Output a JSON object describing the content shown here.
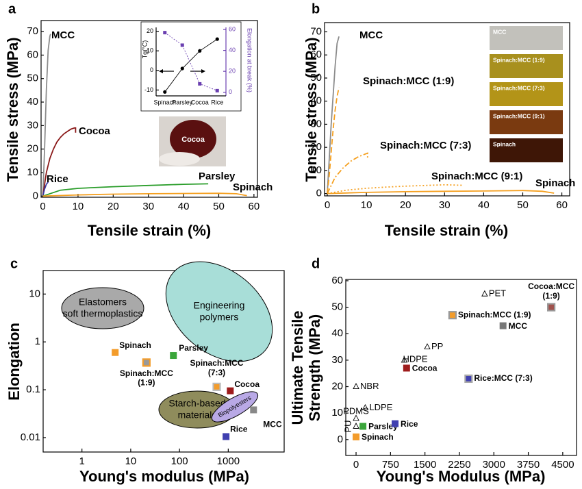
{
  "chart_data": [
    {
      "panel": "a",
      "type": "line",
      "xlabel": "Tensile strain (%)",
      "ylabel": "Tensile stress (MPa)",
      "xlim": [
        -0.5,
        61
      ],
      "ylim": [
        -0.5,
        74.7
      ],
      "xticks": [
        0,
        10,
        20,
        30,
        40,
        50,
        60
      ],
      "yticks": [
        0,
        10,
        20,
        30,
        40,
        50,
        60,
        70
      ],
      "photo_label": "Cocoa",
      "series": [
        {
          "name": "MCC",
          "color": "#8c8c8c",
          "x": [
            0,
            0.5,
            1,
            1.5,
            2,
            2.2
          ],
          "values": [
            0,
            20,
            45,
            62,
            68,
            69
          ]
        },
        {
          "name": "Cocoa",
          "color": "#8b1a1a",
          "x": [
            0,
            1,
            2,
            3,
            4,
            5,
            6,
            7,
            8,
            9,
            9.3,
            9.3
          ],
          "values": [
            0,
            10,
            16,
            20,
            23,
            25,
            26.5,
            27.5,
            28.5,
            29,
            29,
            27
          ]
        },
        {
          "name": "Rice",
          "color": "#3a3aa0",
          "x": [
            0,
            0.5,
            1,
            1.5
          ],
          "values": [
            0,
            3,
            5,
            6
          ]
        },
        {
          "name": "Parsley",
          "color": "#2a9d2a",
          "x": [
            0,
            5,
            10,
            20,
            30,
            40,
            47
          ],
          "values": [
            0,
            2.5,
            3.3,
            4,
            4.5,
            5,
            5.2
          ]
        },
        {
          "name": "Spinach",
          "color": "#f5a020",
          "x": [
            0,
            10,
            20,
            30,
            40,
            50,
            55,
            58
          ],
          "values": [
            0,
            0.5,
            0.8,
            1,
            1.1,
            1.2,
            1,
            0.2
          ]
        }
      ]
    },
    {
      "type": "line",
      "categories": [
        "Spinach",
        "Parsley",
        "Cocoa",
        "Rice"
      ],
      "ylabel": "Tg(°C)",
      "y2label": "Elongation at break (%)",
      "ylim": [
        -13,
        22
      ],
      "yticks": [
        -10,
        0,
        10,
        20
      ],
      "y2lim": [
        -3.5,
        62
      ],
      "y2ticks": [
        0,
        20,
        40,
        60
      ],
      "series": [
        {
          "color": "#000000",
          "values": [
            -11,
            1,
            10,
            16
          ]
        },
        {
          "color": "#6a3fb0",
          "axis": "y2",
          "values": [
            57,
            45,
            8,
            1.5
          ]
        }
      ]
    },
    {
      "panel": "b",
      "type": "line",
      "xlabel": "Tensile strain (%)",
      "ylabel": "Tensile stress (MPa)",
      "xlim": [
        -0.7,
        62
      ],
      "ylim": [
        -1,
        74
      ],
      "xticks": [
        0,
        10,
        20,
        30,
        40,
        50,
        60
      ],
      "yticks": [
        0,
        10,
        20,
        30,
        40,
        50,
        60,
        70
      ],
      "photo_labels": [
        "MCC",
        "Spinach:MCC (1:9)",
        "Spinach:MCC (7:3)",
        "Spinach:MCC (9:1)",
        "Spinach"
      ],
      "series": [
        {
          "name": "MCC",
          "color": "#8c8c8c",
          "x": [
            0,
            1,
            2,
            2.5,
            3
          ],
          "values": [
            0,
            30,
            55,
            65,
            68
          ]
        },
        {
          "name": "Spinach:MCC (1:9)",
          "color": "#f5a020",
          "dash": "dashed",
          "x": [
            0,
            0.5,
            1,
            1.5,
            2,
            2.5,
            3
          ],
          "values": [
            0,
            8,
            18,
            28,
            36,
            42,
            46
          ]
        },
        {
          "name": "Spinach:MCC (7:3)",
          "color": "#f5a020",
          "dash": "dashdot",
          "x": [
            0,
            2,
            4,
            6,
            8,
            10,
            10.3,
            10.3
          ],
          "values": [
            0,
            7,
            11,
            14,
            16,
            17.3,
            17.5,
            15
          ]
        },
        {
          "name": "Spinach:MCC (9:1)",
          "color": "#f5a020",
          "dash": "dotted",
          "x": [
            0,
            5,
            10,
            15,
            20,
            25,
            30,
            34.5
          ],
          "values": [
            0,
            1.5,
            2.3,
            2.8,
            3.2,
            3.5,
            3.8,
            3.6
          ]
        },
        {
          "name": "Spinach",
          "color": "#f5a020",
          "x": [
            0,
            10,
            20,
            30,
            40,
            50,
            55,
            58
          ],
          "values": [
            0,
            0.5,
            0.8,
            1,
            1.1,
            1.3,
            1,
            0.2
          ]
        }
      ]
    },
    {
      "panel": "c",
      "type": "scatter",
      "xlabel": "Young's modulus (MPa)",
      "ylabel": "Elongation",
      "xscale": "log",
      "yscale": "log",
      "xlim": [
        0.16,
        14000
      ],
      "ylim": [
        0.005,
        31
      ],
      "xticks": [
        1,
        10,
        100,
        1000
      ],
      "yticks": [
        0.01,
        0.1,
        1,
        10
      ],
      "regions": [
        {
          "label": "Elastomers soft thermoplastics",
          "color": "#a9a9a9"
        },
        {
          "label": "Engineering polymers",
          "color": "#a8ded8"
        },
        {
          "label": "Starch-based materials",
          "color": "#8f8c5c"
        },
        {
          "label": "Biopolyesters",
          "color": "#b9a9e6"
        }
      ],
      "points": [
        {
          "label": "Spinach",
          "x": 4.8,
          "y": 0.6,
          "color": "#f39c2b",
          "marker": "square"
        },
        {
          "label": "Spinach:MCC (1:9)",
          "x": 21,
          "y": 0.37,
          "color": "#999999",
          "edgecolor": "#f39c2b",
          "marker": "square"
        },
        {
          "label": "Parsley",
          "x": 75,
          "y": 0.52,
          "color": "#3aa53a",
          "marker": "square"
        },
        {
          "label": "Spinach:MCC (7:3)",
          "x": 580,
          "y": 0.115,
          "color": "#f39c2b",
          "edgecolor": "#bbbbbb",
          "marker": "square"
        },
        {
          "label": "Cocoa",
          "x": 1100,
          "y": 0.095,
          "color": "#9e1c1c",
          "marker": "square"
        },
        {
          "label": "MCC",
          "x": 3300,
          "y": 0.038,
          "color": "#888888",
          "marker": "square"
        },
        {
          "label": "Rice",
          "x": 900,
          "y": 0.0105,
          "color": "#4040b0",
          "marker": "square"
        }
      ]
    },
    {
      "panel": "d",
      "type": "scatter",
      "xlabel": "Young's Modulus (MPa)",
      "ylabel": "Ultimate Tensile Strength (MPa)",
      "xlim": [
        -224,
        4800
      ],
      "ylim": [
        -6,
        60.5
      ],
      "xticks": [
        0,
        750,
        1500,
        2250,
        3000,
        3750,
        4500
      ],
      "yticks": [
        0,
        10,
        20,
        30,
        40,
        50,
        60
      ],
      "points": [
        {
          "label": "PET",
          "x": 2800,
          "y": 55,
          "marker": "triangle"
        },
        {
          "label": "PP",
          "x": 1550,
          "y": 35,
          "marker": "triangle"
        },
        {
          "label": "HDPE",
          "x": 1050,
          "y": 30,
          "marker": "triangle"
        },
        {
          "label": "NBR",
          "x": 0,
          "y": 20,
          "marker": "triangle"
        },
        {
          "label": "LDPE",
          "x": 200,
          "y": 12,
          "marker": "triangle"
        },
        {
          "label": "PDMS",
          "x": 0,
          "y": 8,
          "marker": "triangle"
        },
        {
          "label": "PU",
          "x": 0,
          "y": 5,
          "marker": "triangle"
        },
        {
          "label": "Spinach",
          "x": 0,
          "y": 1,
          "color": "#f39c2b",
          "marker": "square"
        },
        {
          "label": "Parsley",
          "x": 150,
          "y": 5,
          "color": "#3aa53a",
          "marker": "square"
        },
        {
          "label": "Rice",
          "x": 850,
          "y": 6,
          "color": "#4040b0",
          "marker": "square"
        },
        {
          "label": "Cocoa",
          "x": 1100,
          "y": 27,
          "color": "#9e1c1c",
          "marker": "square"
        },
        {
          "label": "Spinach:MCC (1:9)",
          "x": 2100,
          "y": 47,
          "color": "#f39c2b",
          "edgecolor": "#999999",
          "marker": "square"
        },
        {
          "label": "MCC",
          "x": 3200,
          "y": 43,
          "color": "#777777",
          "marker": "square"
        },
        {
          "label": "Rice:MCC (7:3)",
          "x": 2450,
          "y": 23,
          "color": "#4040b0",
          "edgecolor": "#aaaaaa",
          "marker": "square"
        },
        {
          "label": "Cocoa:MCC (1:9)",
          "x": 4250,
          "y": 50,
          "color": "#a0524d",
          "edgecolor": "#999999",
          "marker": "square"
        }
      ]
    }
  ]
}
